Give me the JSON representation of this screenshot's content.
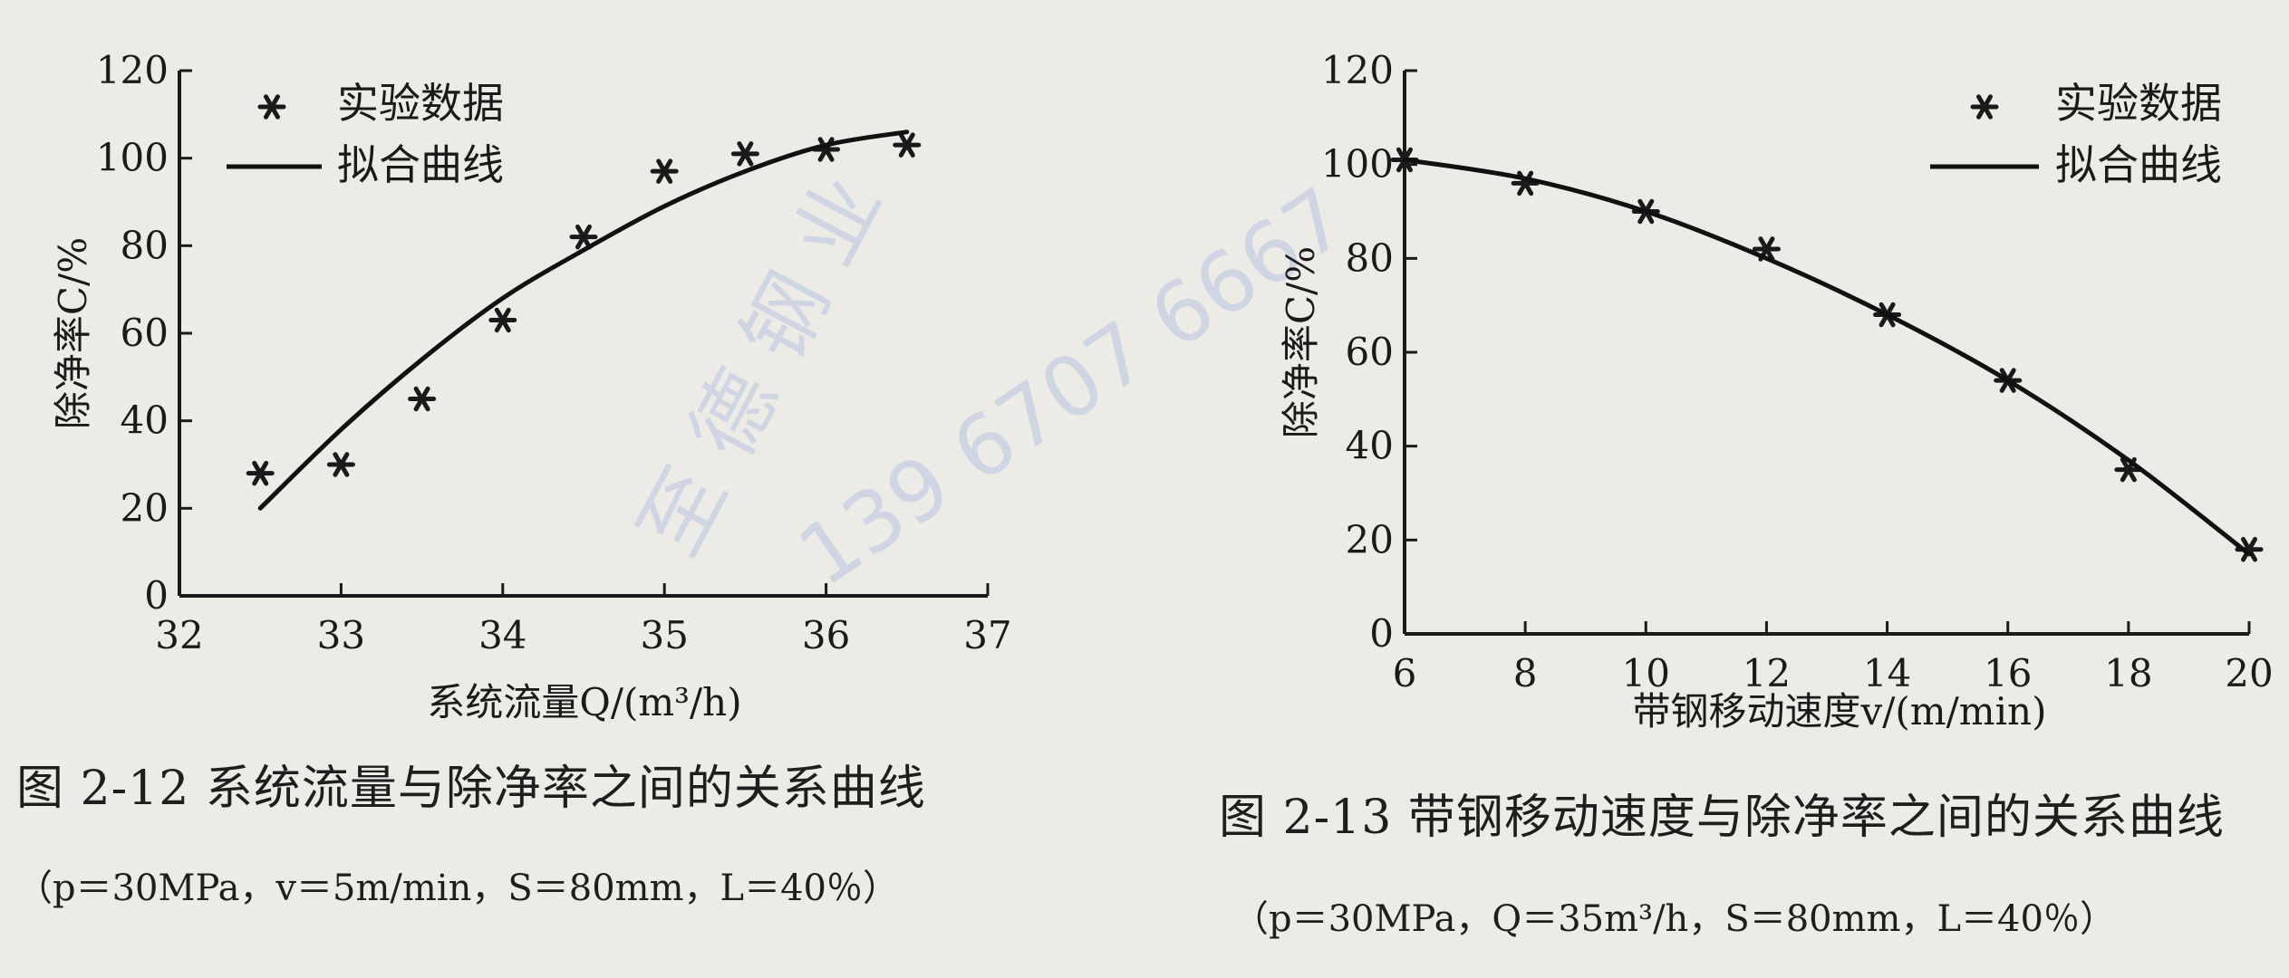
{
  "watermark": {
    "text_cn": "至 德 钢 业",
    "text_phone": "139 6707 6667",
    "color": "#b9c4e2"
  },
  "chart_data": [
    {
      "type": "scatter",
      "panel": "left",
      "title": "",
      "xlabel": "系统流量Q/(m³/h)",
      "ylabel": "除净率C/%",
      "xlim": [
        32,
        37
      ],
      "ylim": [
        0,
        120
      ],
      "xticks": [
        32,
        33,
        34,
        35,
        36,
        37
      ],
      "yticks": [
        0,
        20,
        40,
        60,
        80,
        100,
        120
      ],
      "legend_position": "top-left",
      "grid": false,
      "series": [
        {
          "name": "实验数据",
          "kind": "marker",
          "x": [
            32.5,
            33.0,
            33.5,
            34.0,
            34.5,
            35.0,
            35.5,
            36.0,
            36.5
          ],
          "y": [
            28,
            30,
            45,
            63,
            82,
            97,
            101,
            102,
            103
          ]
        },
        {
          "name": "拟合曲线",
          "kind": "line",
          "x": [
            32.5,
            33.0,
            33.5,
            34.0,
            34.5,
            35.0,
            35.5,
            36.0,
            36.5
          ],
          "y": [
            20,
            38,
            54,
            68,
            79,
            89,
            97,
            103,
            106
          ]
        }
      ],
      "caption": "图 2-12   系统流量与除净率之间的关系曲线",
      "params": "（p＝30MPa，v＝5m/min，S＝80mm，L＝40％）"
    },
    {
      "type": "scatter",
      "panel": "right",
      "title": "",
      "xlabel": "带钢移动速度v/(m/min)",
      "ylabel": "除净率C/%",
      "xlim": [
        6,
        20
      ],
      "ylim": [
        0,
        120
      ],
      "xticks": [
        6,
        8,
        10,
        12,
        14,
        16,
        18,
        20
      ],
      "yticks": [
        0,
        20,
        40,
        60,
        80,
        100,
        120
      ],
      "legend_position": "top-right",
      "grid": false,
      "series": [
        {
          "name": "实验数据",
          "kind": "marker",
          "x": [
            6,
            8,
            10,
            12,
            14,
            16,
            18,
            20
          ],
          "y": [
            101,
            96,
            90,
            82,
            68,
            54,
            35,
            18
          ]
        },
        {
          "name": "拟合曲线",
          "kind": "line",
          "x": [
            6,
            8,
            10,
            12,
            14,
            16,
            18,
            20
          ],
          "y": [
            101,
            97,
            90,
            80,
            68,
            54,
            37,
            17
          ]
        }
      ],
      "caption": "图 2-13   带钢移动速度与除净率之间的关系曲线",
      "params": "（p＝30MPa，Q＝35m³/h，S＝80mm，L＝40％）"
    }
  ]
}
